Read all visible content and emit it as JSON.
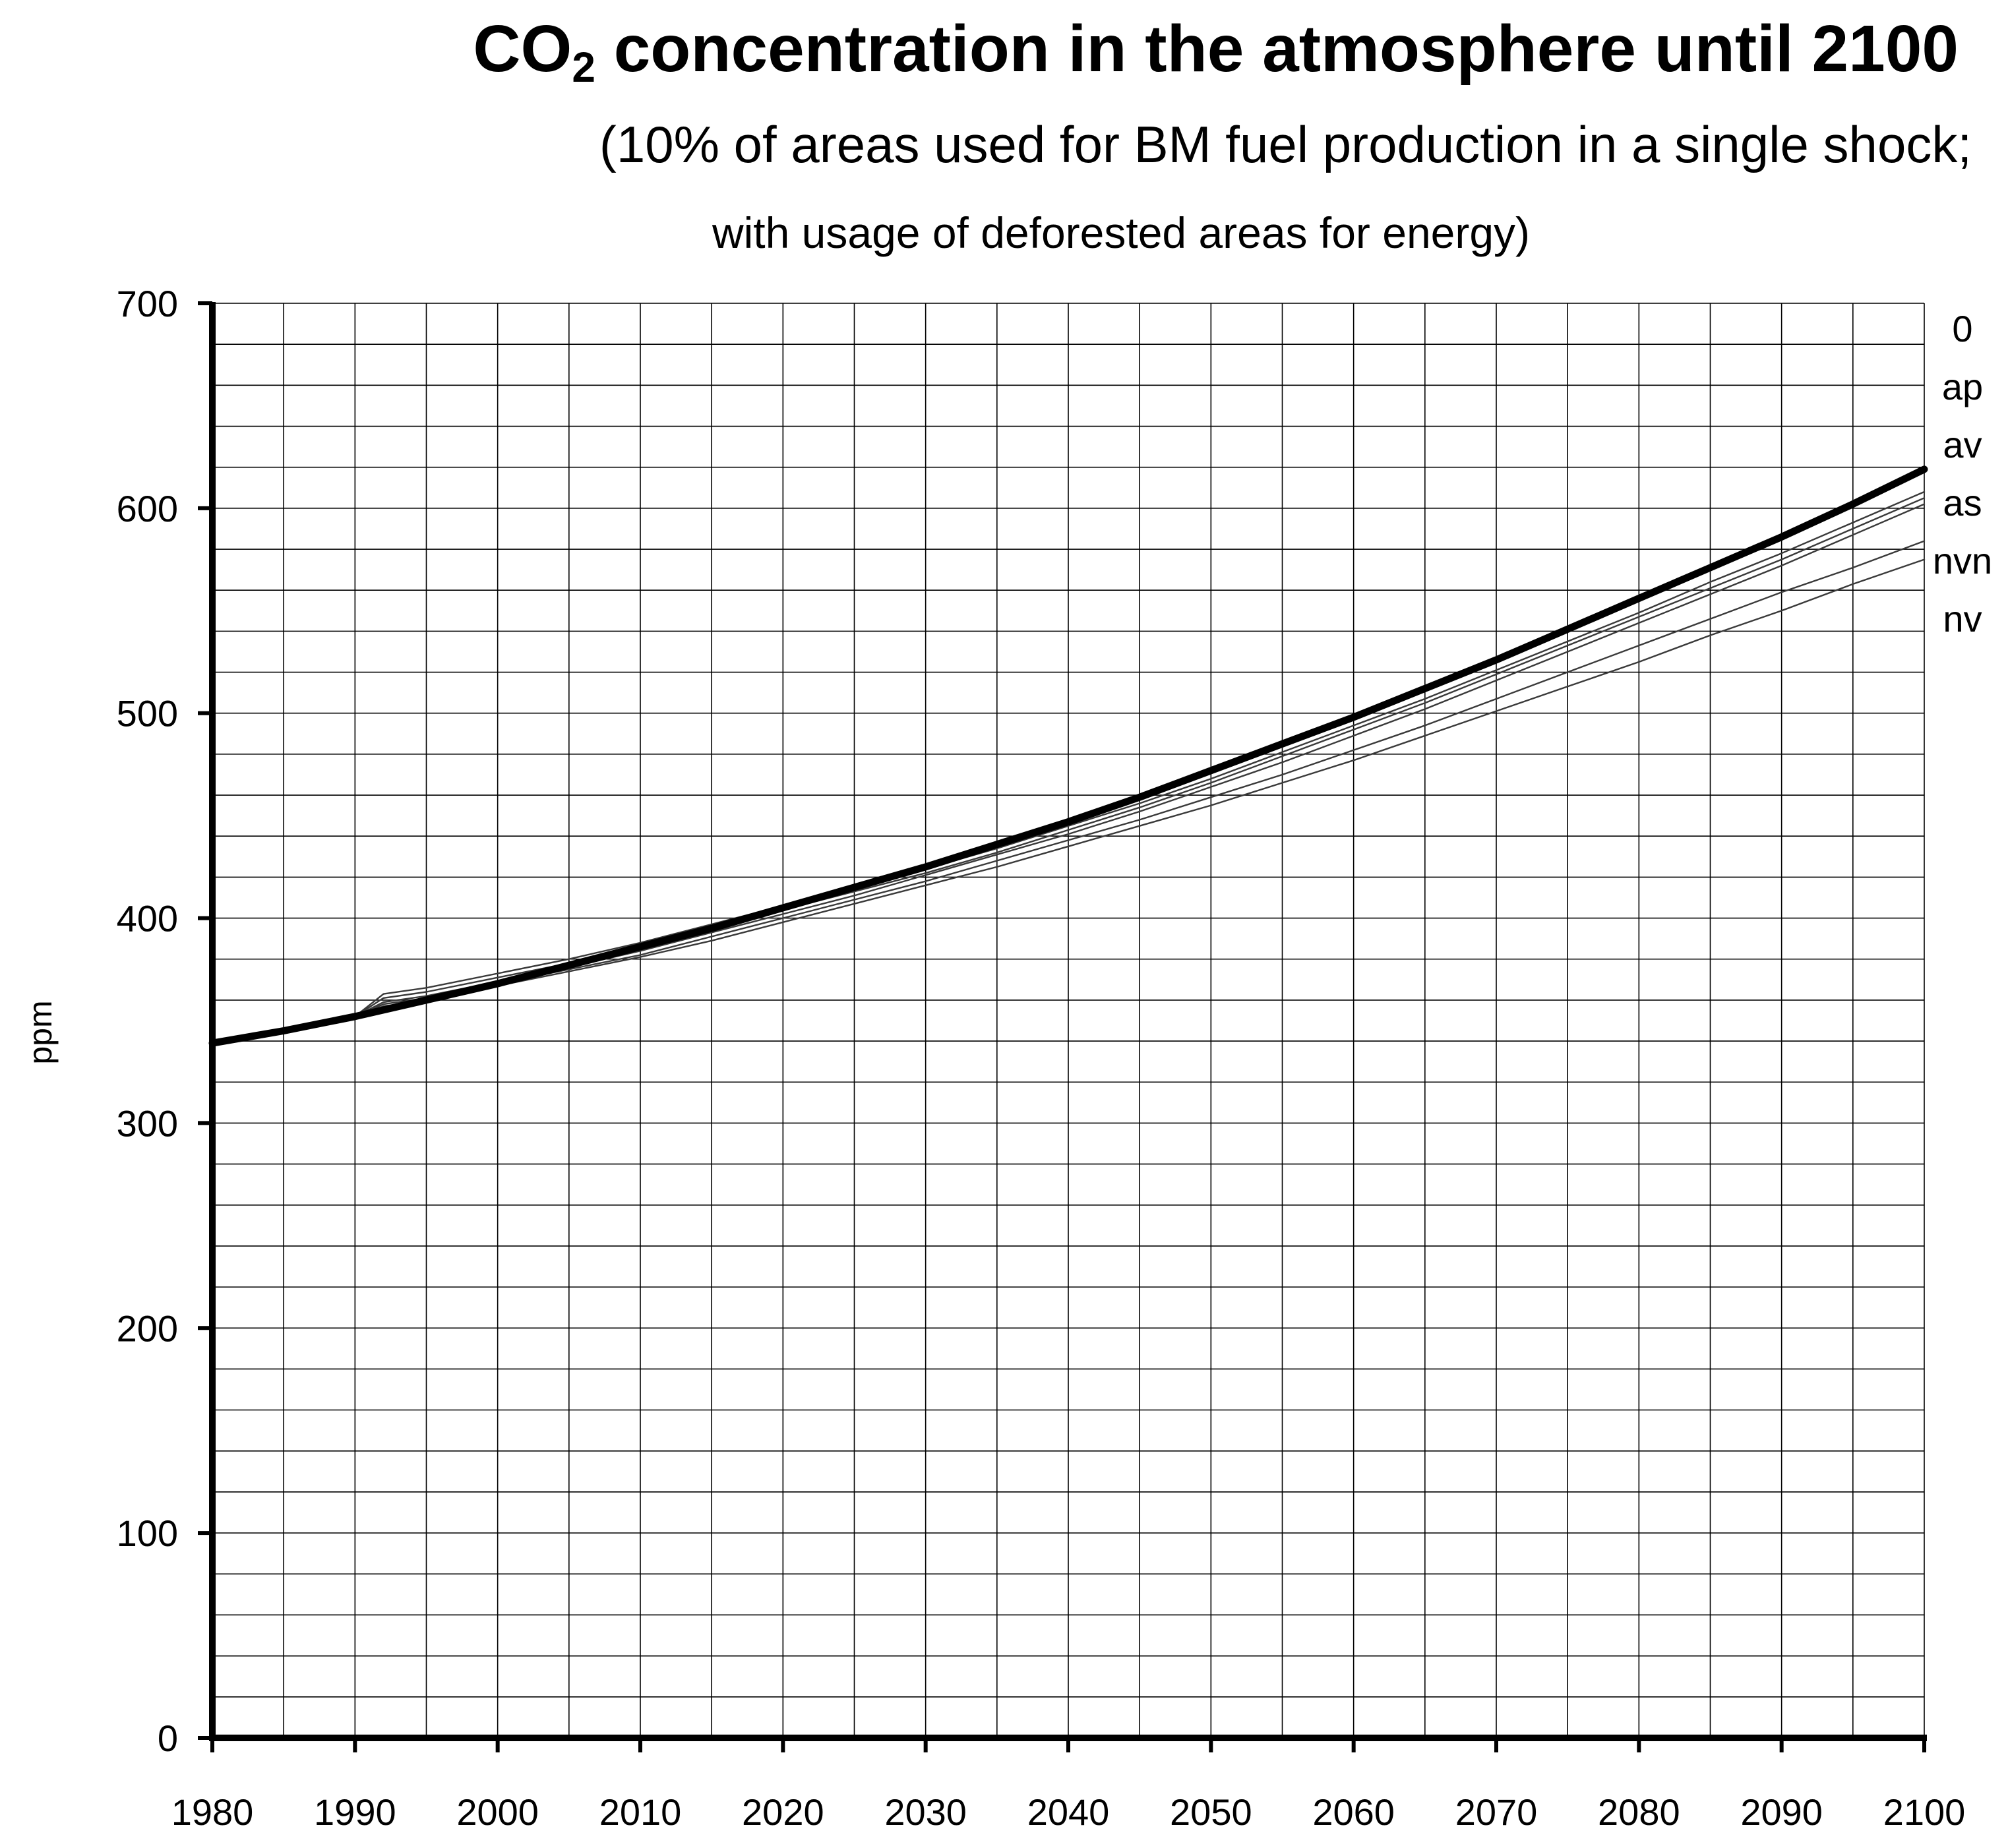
{
  "chart_data": {
    "type": "line",
    "title_main": "CO",
    "title_sub": "2",
    "title_rest": " concentration in the atmosphere until 2100",
    "subtitle_line1": "(10% of areas used for BM fuel production in a single shock;",
    "subtitle_line2": "with usage of deforested areas for energy)",
    "xlabel": "",
    "ylabel": "ppm",
    "xlim": [
      1980,
      2100
    ],
    "ylim": [
      0,
      700
    ],
    "x_ticks": [
      "1980",
      "1990",
      "2000",
      "2010",
      "2020",
      "2030",
      "2040",
      "2050",
      "2060",
      "2070",
      "2080",
      "2090",
      "2100"
    ],
    "y_ticks": [
      "0",
      "100",
      "200",
      "300",
      "400",
      "500",
      "600",
      "700"
    ],
    "grid": true,
    "x_minor_step": 5,
    "y_minor_step": 20,
    "legend_position": "right",
    "legend_entries": [
      "0",
      "ap",
      "av",
      "as",
      "nvn",
      "nv"
    ],
    "series": [
      {
        "name": "0",
        "emphasis": "bold",
        "x": [
          1980,
          1985,
          1990,
          1995,
          2000,
          2005,
          2010,
          2015,
          2020,
          2025,
          2030,
          2035,
          2040,
          2045,
          2050,
          2055,
          2060,
          2065,
          2070,
          2075,
          2080,
          2085,
          2090,
          2095,
          2100
        ],
        "values": [
          339,
          345,
          352,
          360,
          368,
          377,
          386,
          395,
          405,
          415,
          425,
          436,
          447,
          459,
          472,
          485,
          498,
          512,
          526,
          541,
          556,
          571,
          586,
          602,
          619
        ]
      },
      {
        "name": "ap",
        "emphasis": "thin",
        "x": [
          1980,
          1990,
          1992,
          1995,
          2000,
          2005,
          2010,
          2015,
          2020,
          2025,
          2030,
          2035,
          2040,
          2045,
          2050,
          2055,
          2060,
          2065,
          2070,
          2075,
          2080,
          2085,
          2090,
          2095,
          2100
        ],
        "values": [
          339,
          352,
          363,
          366,
          373,
          380,
          388,
          397,
          406,
          415,
          424,
          434,
          445,
          456,
          468,
          481,
          494,
          507,
          521,
          535,
          549,
          564,
          578,
          593,
          608
        ]
      },
      {
        "name": "av",
        "emphasis": "thin",
        "x": [
          1980,
          1990,
          1992,
          1995,
          2000,
          2005,
          2010,
          2015,
          2020,
          2025,
          2030,
          2035,
          2040,
          2045,
          2050,
          2055,
          2060,
          2065,
          2070,
          2075,
          2080,
          2085,
          2090,
          2095,
          2100
        ],
        "values": [
          339,
          352,
          361,
          364,
          371,
          378,
          386,
          395,
          404,
          413,
          422,
          432,
          443,
          454,
          466,
          479,
          492,
          505,
          519,
          533,
          547,
          561,
          575,
          590,
          605
        ]
      },
      {
        "name": "as",
        "emphasis": "thin",
        "x": [
          1980,
          1990,
          1992,
          1995,
          2000,
          2005,
          2010,
          2015,
          2020,
          2025,
          2030,
          2035,
          2040,
          2045,
          2050,
          2055,
          2060,
          2065,
          2070,
          2075,
          2080,
          2085,
          2090,
          2095,
          2100
        ],
        "values": [
          339,
          352,
          359,
          362,
          369,
          376,
          384,
          393,
          402,
          411,
          421,
          431,
          441,
          452,
          464,
          476,
          489,
          502,
          516,
          530,
          544,
          558,
          572,
          587,
          602
        ]
      },
      {
        "name": "nvn",
        "emphasis": "thin",
        "x": [
          1980,
          1990,
          1992,
          1995,
          2000,
          2005,
          2010,
          2015,
          2020,
          2025,
          2030,
          2035,
          2040,
          2045,
          2050,
          2055,
          2060,
          2065,
          2070,
          2075,
          2080,
          2085,
          2090,
          2095,
          2100
        ],
        "values": [
          339,
          352,
          358,
          361,
          368,
          375,
          382,
          391,
          400,
          409,
          418,
          428,
          438,
          448,
          459,
          470,
          482,
          494,
          507,
          520,
          533,
          546,
          559,
          571,
          584
        ]
      },
      {
        "name": "nv",
        "emphasis": "thin",
        "x": [
          1980,
          1990,
          1992,
          1995,
          2000,
          2005,
          2010,
          2015,
          2020,
          2025,
          2030,
          2035,
          2040,
          2045,
          2050,
          2055,
          2060,
          2065,
          2070,
          2075,
          2080,
          2085,
          2090,
          2095,
          2100
        ],
        "values": [
          339,
          352,
          357,
          360,
          367,
          374,
          381,
          389,
          398,
          407,
          416,
          425,
          435,
          445,
          455,
          466,
          477,
          489,
          501,
          513,
          525,
          538,
          550,
          563,
          575
        ]
      }
    ]
  }
}
